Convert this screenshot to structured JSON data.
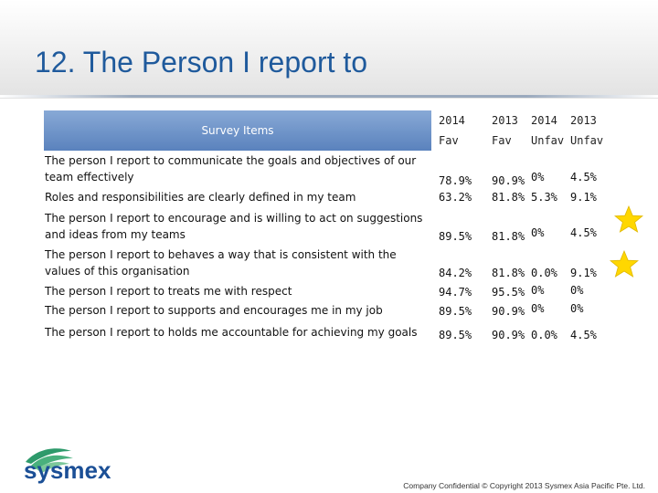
{
  "slide": {
    "title": "12. The Person I report to",
    "footer": "Company Confidential © Copyright 2013 Sysmex Asia Pacific Pte. Ltd.",
    "logo_text": "sysmex",
    "accent_color": "#1f5a9c",
    "header_color": "#5a82bd",
    "star_color": "#ffd700"
  },
  "table": {
    "item_header": "Survey Items",
    "col_headers": [
      {
        "year": "2014",
        "kind": "Fav"
      },
      {
        "year": "2013",
        "kind": "Fav"
      },
      {
        "year": "2014",
        "kind": "Unfav"
      },
      {
        "year": "2013",
        "kind": "Unfav"
      }
    ],
    "rows": [
      {
        "item": "The person I report to communicate the goals and objectives of our team effectively",
        "fav2014": "78.9%",
        "fav2013": "90.9%",
        "unfav2014": "0%",
        "unfav2013": "4.5%",
        "starred": false
      },
      {
        "item": "Roles and responsibilities are clearly defined in my team",
        "fav2014": "63.2%",
        "fav2013": "81.8%",
        "unfav2014": "5.3%",
        "unfav2013": "9.1%",
        "starred": false
      },
      {
        "item": "The person I report to encourage and is willing to act on suggestions and ideas from my teams",
        "fav2014": "89.5%",
        "fav2013": "81.8%",
        "unfav2014": "0%",
        "unfav2013": "4.5%",
        "starred": true
      },
      {
        "item": "The person I report to behaves  a way that is consistent with the values of this organisation",
        "fav2014": "84.2%",
        "fav2013": "81.8%",
        "unfav2014": "0.0%",
        "unfav2013": "9.1%",
        "starred": true
      },
      {
        "item": "The person I report to treats me with respect",
        "fav2014": "94.7%",
        "fav2013": "95.5%",
        "unfav2014": "0%",
        "unfav2013": "0%",
        "starred": false
      },
      {
        "item": "The person I report to supports and encourages me in my job",
        "fav2014": "89.5%",
        "fav2013": "90.9%",
        "unfav2014": "0%",
        "unfav2013": "0%",
        "starred": false
      },
      {
        "item": "The person I report to holds me accountable for achieving my goals",
        "fav2014": "89.5%",
        "fav2013": "90.9%",
        "unfav2014": "0.0%",
        "unfav2013": "4.5%",
        "starred": false
      }
    ]
  }
}
